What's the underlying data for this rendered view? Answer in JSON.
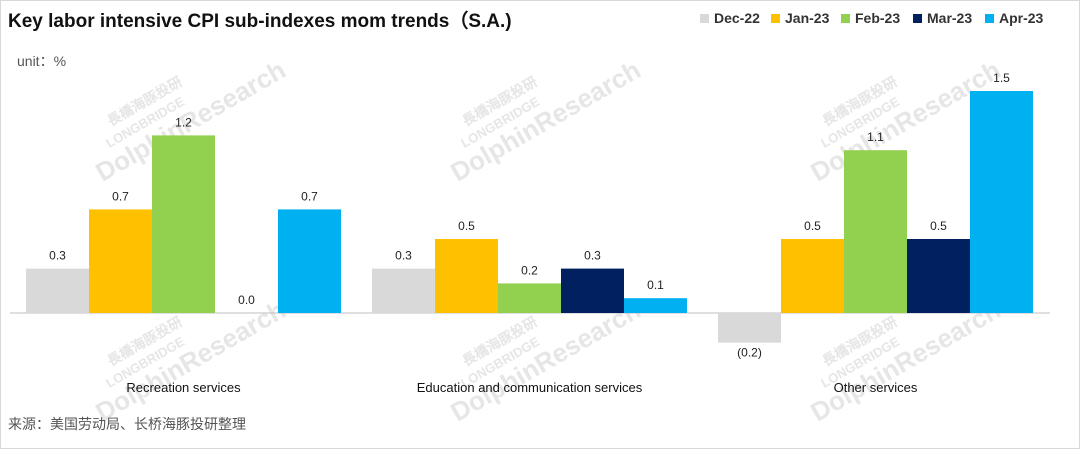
{
  "title": "Key labor intensive CPI sub-indexes mom trends（S.A.)",
  "unit_label": "unit：%",
  "source_text": "来源：美国劳动局、长桥海豚投研整理",
  "watermark": {
    "main": "DolphinResearch",
    "sub": "LONGBRIDGE",
    "cn": "長橋海豚投研"
  },
  "colors": {
    "Dec-22": "#d9d9d9",
    "Jan-23": "#ffc000",
    "Feb-23": "#92d050",
    "Mar-23": "#002060",
    "Apr-23": "#00b0f0",
    "negative_label": "#ff0000"
  },
  "chart_data": {
    "type": "bar",
    "title": "Key labor intensive CPI sub-indexes mom trends（S.A.)",
    "unit": "unit：%",
    "categories": [
      "Recreation services",
      "Education and communication services",
      "Other services"
    ],
    "series": [
      {
        "name": "Dec-22",
        "values": [
          0.3,
          0.3,
          -0.2
        ],
        "labels": [
          "0.3",
          "0.3",
          "(0.2)"
        ]
      },
      {
        "name": "Jan-23",
        "values": [
          0.7,
          0.5,
          0.5
        ],
        "labels": [
          "0.7",
          "0.5",
          "0.5"
        ]
      },
      {
        "name": "Feb-23",
        "values": [
          1.2,
          0.2,
          1.1
        ],
        "labels": [
          "1.2",
          "0.2",
          "1.1"
        ]
      },
      {
        "name": "Mar-23",
        "values": [
          0.0,
          0.3,
          0.5
        ],
        "labels": [
          "0.0",
          "0.3",
          "0.5"
        ]
      },
      {
        "name": "Apr-23",
        "values": [
          0.7,
          0.1,
          1.5
        ],
        "labels": [
          "0.7",
          "0.1",
          "1.5"
        ]
      }
    ],
    "ylim": [
      -0.3,
      1.6
    ],
    "grid": false,
    "legend": "top-right"
  }
}
